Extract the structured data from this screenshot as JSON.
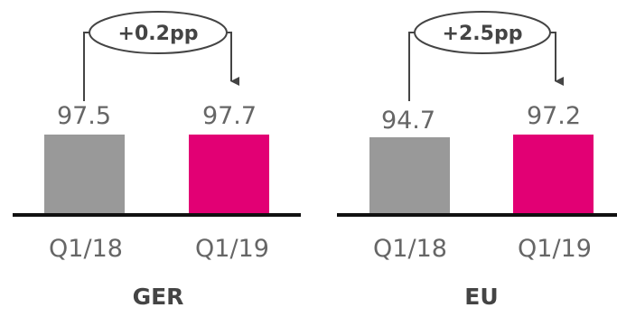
{
  "colors": {
    "bar_q1_18": "#999999",
    "bar_q1_19": "#e20074",
    "axis": "#111111",
    "annotation": "#444444",
    "text": "#666666"
  },
  "chart_data": [
    {
      "type": "bar",
      "title": "GER",
      "categories": [
        "Q1/18",
        "Q1/19"
      ],
      "values": [
        97.5,
        97.7
      ],
      "value_labels": [
        "97.5",
        "97.7"
      ],
      "annotation": "+0.2pp",
      "xlabel": "",
      "ylabel": "",
      "grid": false
    },
    {
      "type": "bar",
      "title": "EU",
      "categories": [
        "Q1/18",
        "Q1/19"
      ],
      "values": [
        94.7,
        97.2
      ],
      "value_labels": [
        "94.7",
        "97.2"
      ],
      "annotation": "+2.5pp",
      "xlabel": "",
      "ylabel": "",
      "grid": false
    }
  ]
}
